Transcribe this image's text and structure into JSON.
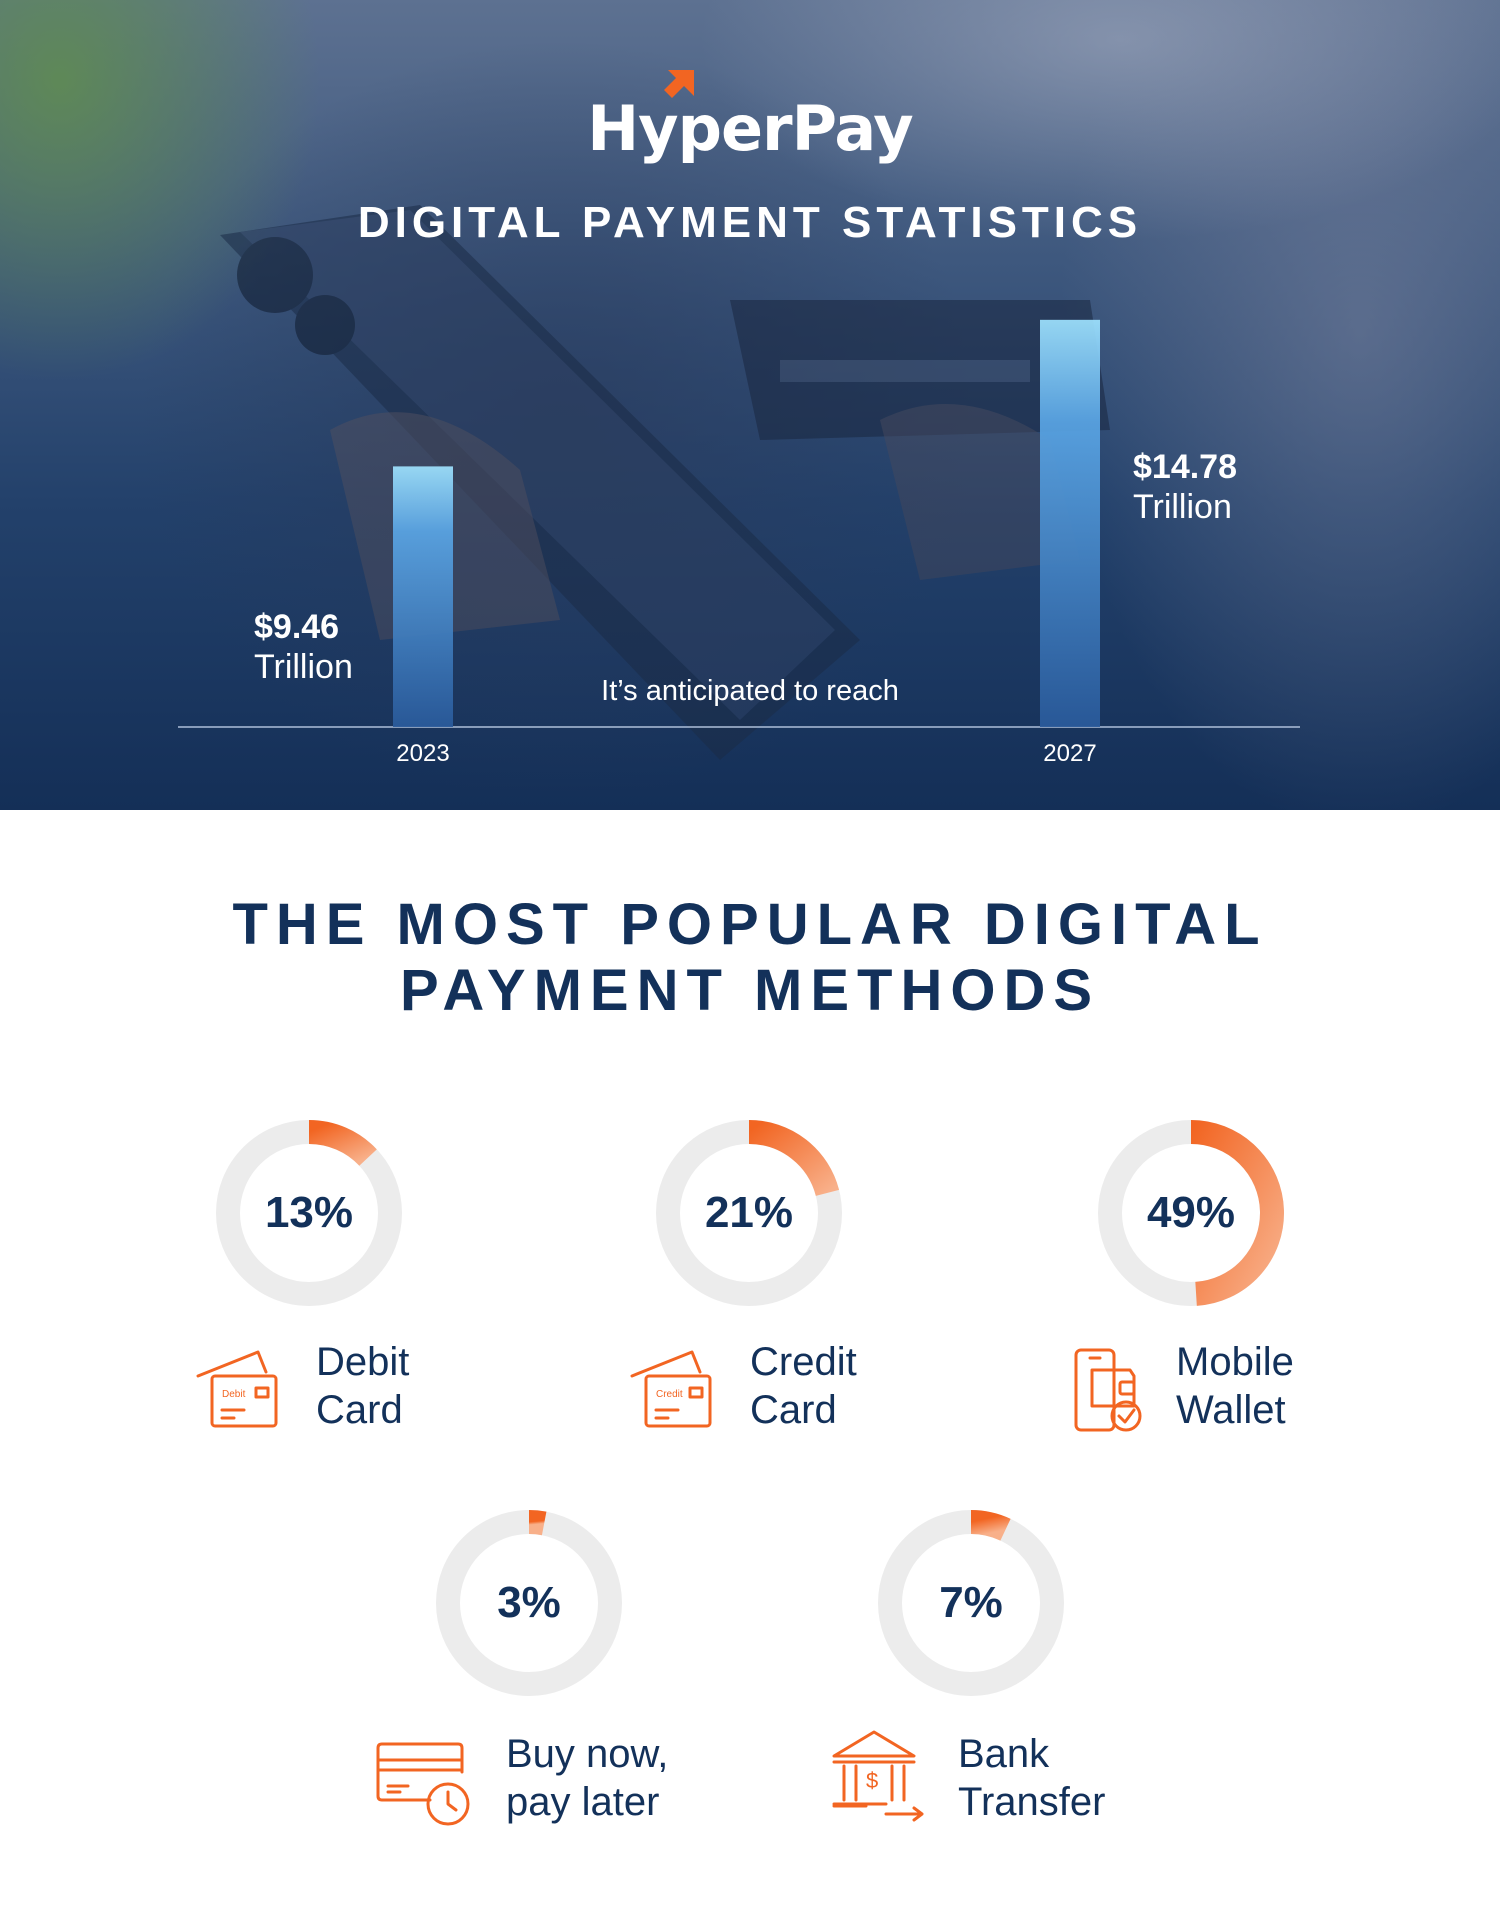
{
  "brand": {
    "logo_text": "HyperPay",
    "accent": "#f26522",
    "navy": "#13315a"
  },
  "hero": {
    "title": "DIGITAL PAYMENT STATISTICS",
    "callout": "It’s anticipated to reach"
  },
  "chart_data": [
    {
      "type": "bar",
      "categories": [
        "2023",
        "2027"
      ],
      "values": [
        9.46,
        14.78
      ],
      "data_labels": [
        {
          "amount": "$9.46",
          "unit": "Trillion"
        },
        {
          "amount": "$14.78",
          "unit": "Trillion"
        }
      ],
      "title": "DIGITAL PAYMENT STATISTICS",
      "xlabel": "",
      "ylabel": "",
      "ylim": [
        0,
        15.5
      ]
    },
    {
      "type": "pie",
      "title": "THE MOST POPULAR DIGITAL PAYMENT METHODS",
      "categories": [
        "Debit Card",
        "Credit Card",
        "Mobile Wallet",
        "Buy now, pay later",
        "Bank Transfer"
      ],
      "values": [
        13,
        21,
        49,
        3,
        7
      ],
      "value_labels": [
        "13%",
        "21%",
        "49%",
        "3%",
        "7%"
      ]
    }
  ],
  "methods": {
    "title_line1": "THE MOST POPULAR DIGITAL",
    "title_line2": "PAYMENT METHODS",
    "items": [
      {
        "pct": "13%",
        "label_line1": "Debit",
        "label_line2": "Card",
        "icon": "debit-card-icon",
        "icon_text": "Debit"
      },
      {
        "pct": "21%",
        "label_line1": "Credit",
        "label_line2": "Card",
        "icon": "credit-card-icon",
        "icon_text": "Credit"
      },
      {
        "pct": "49%",
        "label_line1": "Mobile",
        "label_line2": "Wallet",
        "icon": "mobile-wallet-icon"
      },
      {
        "pct": "3%",
        "label_line1": "Buy now,",
        "label_line2": "pay later",
        "icon": "bnpl-card-clock-icon"
      },
      {
        "pct": "7%",
        "label_line1": "Bank",
        "label_line2": "Transfer",
        "icon": "bank-transfer-icon",
        "icon_text": "$"
      }
    ]
  }
}
